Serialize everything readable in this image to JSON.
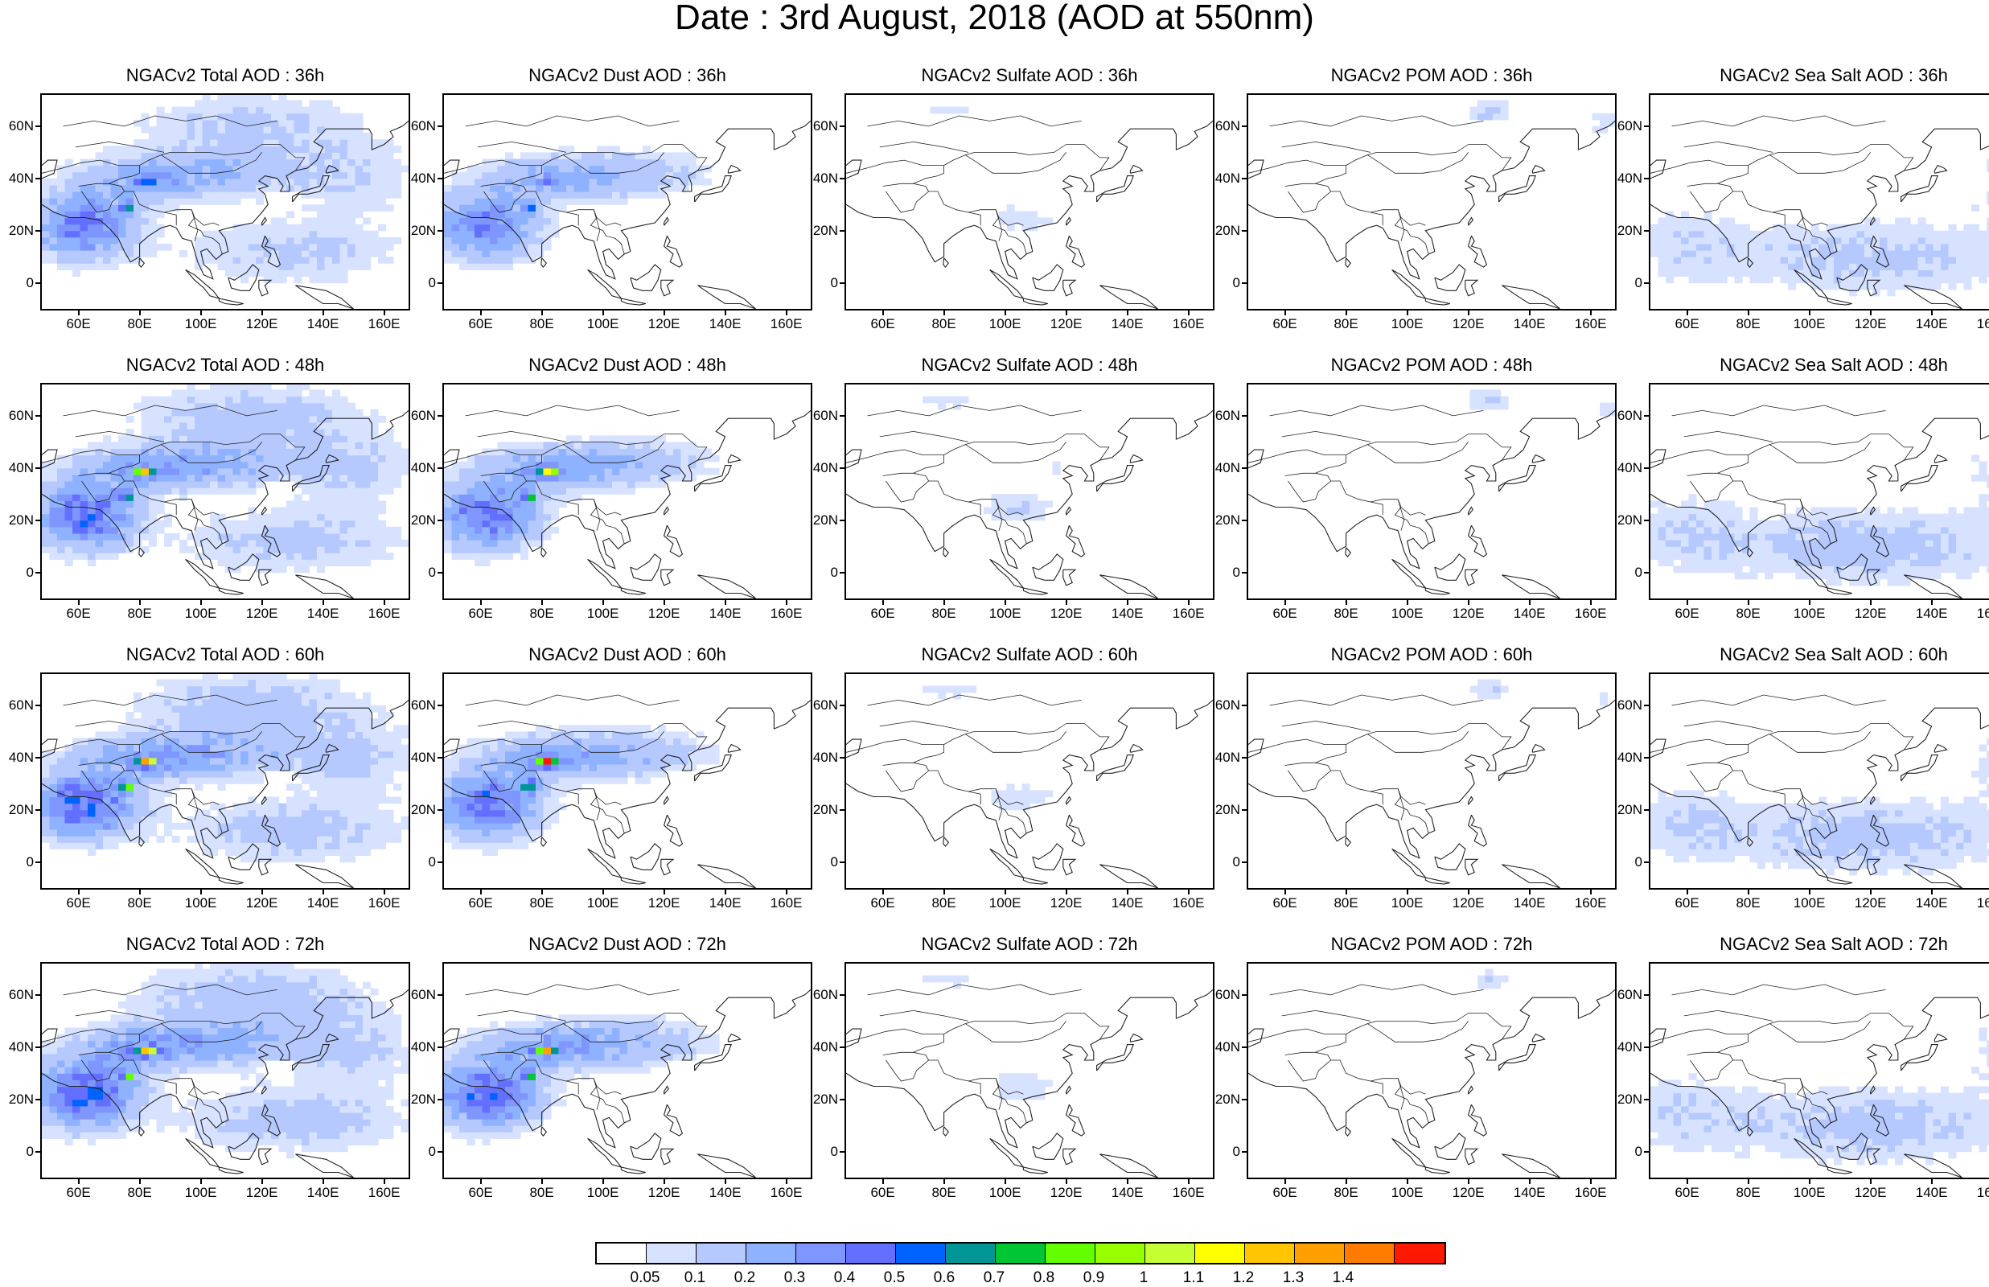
{
  "main_title": "Date : 3rd August, 2018 (AOD at 550nm)",
  "chart_data": {
    "type": "heatmap",
    "layout": "4 rows x 5 columns of map panels",
    "x_ticks": [
      "60E",
      "80E",
      "100E",
      "120E",
      "140E",
      "160E"
    ],
    "y_ticks": [
      "60N",
      "40N",
      "20N",
      "0"
    ],
    "xlim": [
      48,
      168
    ],
    "ylim": [
      -10,
      72
    ],
    "colorbar": {
      "labels": [
        "0.05",
        "0.1",
        "0.2",
        "0.3",
        "0.4",
        "0.5",
        "0.6",
        "0.7",
        "0.8",
        "0.9",
        "1",
        "1.1",
        "1.2",
        "1.3",
        "1.4"
      ],
      "colors": [
        "#ffffff",
        "#d6e2ff",
        "#b5c9ff",
        "#8eb2ff",
        "#7f96ff",
        "#6370ff",
        "#0063ff",
        "#009696",
        "#00c633",
        "#63ff00",
        "#96ff00",
        "#c6ff33",
        "#ffff00",
        "#ffc600",
        "#ffa000",
        "#ff7c00",
        "#ff1900"
      ]
    },
    "panels": [
      {
        "title": "NGACv2 Total AOD : 36h",
        "species": "total",
        "intensity": 1.0
      },
      {
        "title": "NGACv2 Dust AOD : 36h",
        "species": "dust",
        "intensity": 1.0
      },
      {
        "title": "NGACv2 Sulfate AOD : 36h",
        "species": "sulfate",
        "intensity": 0.8
      },
      {
        "title": "NGACv2 POM AOD : 36h",
        "species": "pom",
        "intensity": 1.0
      },
      {
        "title": "NGACv2 Sea Salt AOD : 36h",
        "species": "seasalt",
        "intensity": 1.0
      },
      {
        "title": "NGACv2 Total AOD : 48h",
        "species": "total",
        "intensity": 1.1
      },
      {
        "title": "NGACv2 Dust AOD : 48h",
        "species": "dust",
        "intensity": 1.1
      },
      {
        "title": "NGACv2 Sulfate AOD : 48h",
        "species": "sulfate",
        "intensity": 1.0
      },
      {
        "title": "NGACv2 POM AOD : 48h",
        "species": "pom",
        "intensity": 0.9
      },
      {
        "title": "NGACv2 Sea Salt AOD : 48h",
        "species": "seasalt",
        "intensity": 1.1
      },
      {
        "title": "NGACv2 Total AOD : 60h",
        "species": "total",
        "intensity": 1.15
      },
      {
        "title": "NGACv2 Dust AOD : 60h",
        "species": "dust",
        "intensity": 1.15
      },
      {
        "title": "NGACv2 Sulfate AOD : 60h",
        "species": "sulfate",
        "intensity": 0.9
      },
      {
        "title": "NGACv2 POM AOD : 60h",
        "species": "pom",
        "intensity": 0.7
      },
      {
        "title": "NGACv2 Sea Salt AOD : 60h",
        "species": "seasalt",
        "intensity": 1.1
      },
      {
        "title": "NGACv2 Total AOD : 72h",
        "species": "total",
        "intensity": 1.2
      },
      {
        "title": "NGACv2 Dust AOD : 72h",
        "species": "dust",
        "intensity": 1.2
      },
      {
        "title": "NGACv2 Sulfate AOD : 72h",
        "species": "sulfate",
        "intensity": 0.9
      },
      {
        "title": "NGACv2 POM AOD : 72h",
        "species": "pom",
        "intensity": 0.6
      },
      {
        "title": "NGACv2 Sea Salt  AOD : 72h",
        "species": "seasalt",
        "intensity": 1.1
      }
    ]
  }
}
